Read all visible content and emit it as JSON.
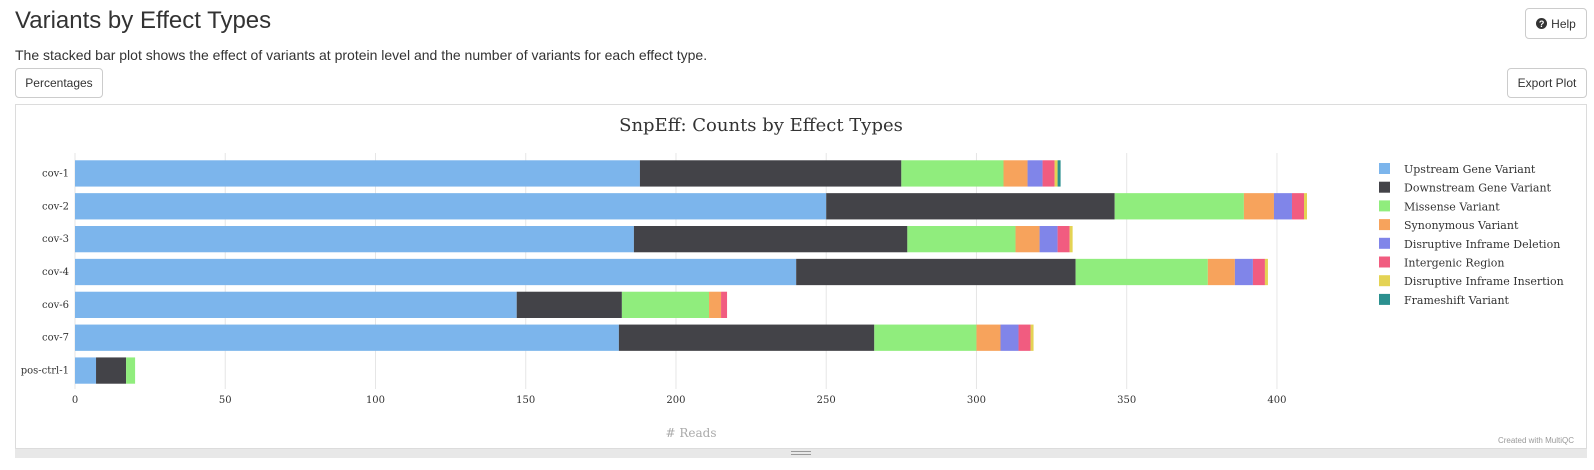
{
  "header": {
    "title": "Variants by Effect Types",
    "description": "The stacked bar plot shows the effect of variants at protein level and the number of variants for each effect type.",
    "help_label": "Help"
  },
  "toolbar": {
    "percentages_label": "Percentages",
    "export_label": "Export Plot"
  },
  "credits": "Created with MultiQC",
  "chart_data": {
    "type": "bar",
    "orientation": "horizontal",
    "stacked": true,
    "title": "SnpEff: Counts by Effect Types",
    "xlabel": "# Reads",
    "xlim": [
      0,
      410
    ],
    "xticks": [
      0,
      50,
      100,
      150,
      200,
      250,
      300,
      350,
      400
    ],
    "grid": true,
    "legend_position": "right",
    "categories": [
      "cov-1",
      "cov-2",
      "cov-3",
      "cov-4",
      "cov-6",
      "cov-7",
      "pos-ctrl-1"
    ],
    "series": [
      {
        "name": "Upstream Gene Variant",
        "color": "#7cb5ec",
        "values": [
          188,
          250,
          186,
          240,
          147,
          181,
          7
        ]
      },
      {
        "name": "Downstream Gene Variant",
        "color": "#434348",
        "values": [
          87,
          96,
          91,
          93,
          35,
          85,
          10
        ]
      },
      {
        "name": "Missense Variant",
        "color": "#90ed7d",
        "values": [
          34,
          43,
          36,
          44,
          29,
          34,
          3
        ]
      },
      {
        "name": "Synonymous Variant",
        "color": "#f7a35c",
        "values": [
          8,
          10,
          8,
          9,
          4,
          8,
          0
        ]
      },
      {
        "name": "Disruptive Inframe Deletion",
        "color": "#8085e9",
        "values": [
          5,
          6,
          6,
          6,
          0,
          6,
          0
        ]
      },
      {
        "name": "Intergenic Region",
        "color": "#f15c80",
        "values": [
          4,
          4,
          4,
          4,
          2,
          4,
          0
        ]
      },
      {
        "name": "Disruptive Inframe Insertion",
        "color": "#e4d354",
        "values": [
          1,
          1,
          1,
          1,
          0,
          1,
          0
        ]
      },
      {
        "name": "Frameshift Variant",
        "color": "#2b908f",
        "values": [
          1,
          0,
          0,
          0,
          0,
          0,
          0
        ]
      }
    ]
  }
}
